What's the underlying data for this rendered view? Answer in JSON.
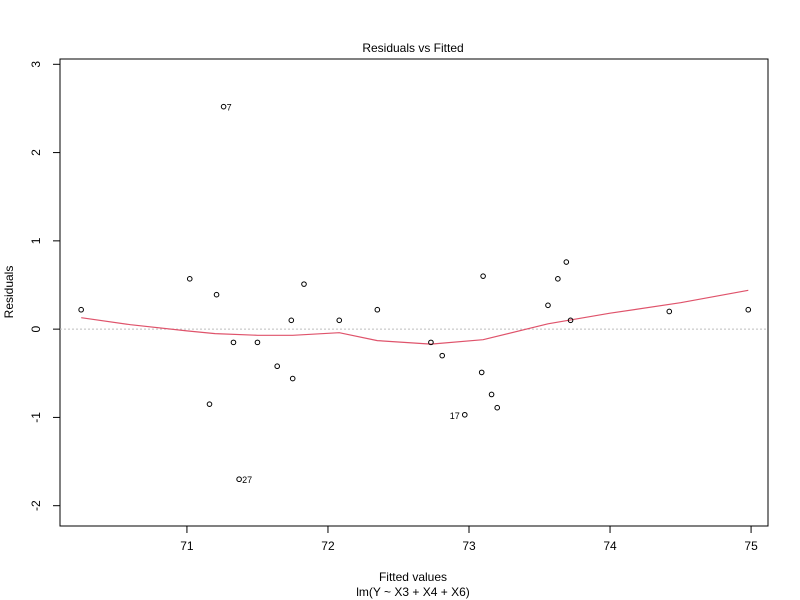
{
  "chart_data": {
    "type": "scatter",
    "title": "Residuals vs Fitted",
    "xlabel": "Fitted values",
    "xsublabel": "lm(Y ~ X3 + X4 + X6)",
    "ylabel": "Residuals",
    "xlim": [
      70.1,
      75.12
    ],
    "ylim": [
      -2.23,
      3.06
    ],
    "xticks": [
      71,
      72,
      73,
      74,
      75
    ],
    "yticks": [
      -2,
      -1,
      0,
      1,
      2,
      3
    ],
    "reference_line_y": 0,
    "grid": false,
    "legend": "none",
    "colors": {
      "points": "#000000",
      "smoother": "#DF536B",
      "reference": "#BEBEBE"
    },
    "points": [
      {
        "x": 70.25,
        "y": 0.22
      },
      {
        "x": 71.02,
        "y": 0.57
      },
      {
        "x": 71.16,
        "y": -0.85
      },
      {
        "x": 71.21,
        "y": 0.39
      },
      {
        "x": 71.26,
        "y": 2.52,
        "label": "7"
      },
      {
        "x": 71.33,
        "y": -0.15
      },
      {
        "x": 71.37,
        "y": -1.7,
        "label": "27"
      },
      {
        "x": 71.5,
        "y": -0.15
      },
      {
        "x": 71.64,
        "y": -0.42
      },
      {
        "x": 71.74,
        "y": 0.1
      },
      {
        "x": 71.75,
        "y": -0.56
      },
      {
        "x": 71.83,
        "y": 0.51
      },
      {
        "x": 72.08,
        "y": 0.1
      },
      {
        "x": 72.35,
        "y": 0.22
      },
      {
        "x": 72.73,
        "y": -0.15
      },
      {
        "x": 72.81,
        "y": -0.3
      },
      {
        "x": 72.97,
        "y": -0.97,
        "label": "17"
      },
      {
        "x": 73.09,
        "y": -0.49
      },
      {
        "x": 73.1,
        "y": 0.6
      },
      {
        "x": 73.16,
        "y": -0.74
      },
      {
        "x": 73.2,
        "y": -0.89
      },
      {
        "x": 73.56,
        "y": 0.27
      },
      {
        "x": 73.63,
        "y": 0.57
      },
      {
        "x": 73.69,
        "y": 0.76
      },
      {
        "x": 73.72,
        "y": 0.1
      },
      {
        "x": 74.42,
        "y": 0.2
      },
      {
        "x": 74.98,
        "y": 0.22
      }
    ],
    "smoother": {
      "x": [
        70.25,
        70.6,
        71.0,
        71.2,
        71.5,
        71.75,
        72.08,
        72.35,
        72.73,
        73.1,
        73.56,
        74.0,
        74.5,
        74.98
      ],
      "y": [
        0.13,
        0.05,
        -0.02,
        -0.05,
        -0.07,
        -0.07,
        -0.04,
        -0.13,
        -0.17,
        -0.12,
        0.06,
        0.18,
        0.3,
        0.44
      ]
    }
  }
}
